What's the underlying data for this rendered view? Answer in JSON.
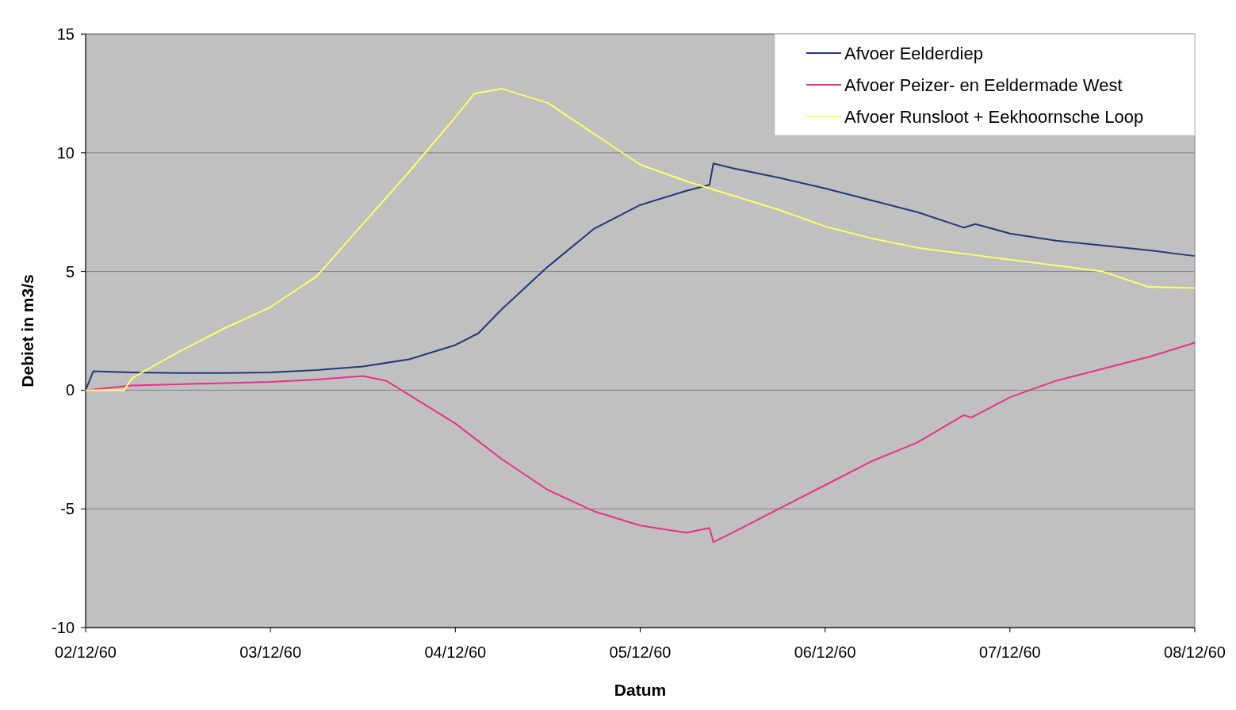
{
  "chart_data": {
    "type": "line",
    "xlabel": "Datum",
    "ylabel": "Debiet in m3/s",
    "ylim": [
      -10,
      15
    ],
    "yticks": [
      -10,
      -5,
      0,
      5,
      10,
      15
    ],
    "xlim": [
      "1960-12-02",
      "1960-12-08"
    ],
    "xticks": [
      {
        "value": "1960-12-02",
        "label": "02/12/60"
      },
      {
        "value": "1960-12-03",
        "label": "03/12/60"
      },
      {
        "value": "1960-12-04",
        "label": "04/12/60"
      },
      {
        "value": "1960-12-05",
        "label": "05/12/60"
      },
      {
        "value": "1960-12-06",
        "label": "06/12/60"
      },
      {
        "value": "1960-12-07",
        "label": "07/12/60"
      },
      {
        "value": "1960-12-08",
        "label": "08/12/60"
      }
    ],
    "grid": "y",
    "legend": "top right",
    "series": [
      {
        "name": "Afvoer Eelderdiep",
        "color": "#1f3a7a",
        "x": [
          "1960-12-02T00:00",
          "1960-12-02T01:00",
          "1960-12-02T06:00",
          "1960-12-02T12:00",
          "1960-12-02T18:00",
          "1960-12-03T00:00",
          "1960-12-03T06:00",
          "1960-12-03T12:00",
          "1960-12-03T18:00",
          "1960-12-04T00:00",
          "1960-12-04T03:00",
          "1960-12-04T06:00",
          "1960-12-04T12:00",
          "1960-12-04T18:00",
          "1960-12-05T00:00",
          "1960-12-05T06:00",
          "1960-12-05T09:00",
          "1960-12-05T09:30",
          "1960-12-05T12:00",
          "1960-12-05T18:00",
          "1960-12-06T00:00",
          "1960-12-06T06:00",
          "1960-12-06T12:00",
          "1960-12-06T18:00",
          "1960-12-06T19:30",
          "1960-12-07T00:00",
          "1960-12-07T06:00",
          "1960-12-07T12:00",
          "1960-12-07T18:00",
          "1960-12-08T00:00"
        ],
        "values": [
          0,
          0.8,
          0.75,
          0.72,
          0.72,
          0.75,
          0.85,
          1.0,
          1.3,
          1.9,
          2.4,
          3.4,
          5.2,
          6.8,
          7.8,
          8.4,
          8.65,
          9.55,
          9.35,
          8.95,
          8.5,
          8.0,
          7.5,
          6.85,
          7.0,
          6.6,
          6.3,
          6.1,
          5.9,
          5.65
        ]
      },
      {
        "name": "Afvoer Peizer- en Eeldermade West",
        "color": "#e8308a",
        "x": [
          "1960-12-02T00:00",
          "1960-12-02T06:00",
          "1960-12-02T12:00",
          "1960-12-02T18:00",
          "1960-12-03T00:00",
          "1960-12-03T06:00",
          "1960-12-03T12:00",
          "1960-12-03T15:00",
          "1960-12-03T18:00",
          "1960-12-04T00:00",
          "1960-12-04T06:00",
          "1960-12-04T12:00",
          "1960-12-04T18:00",
          "1960-12-05T00:00",
          "1960-12-05T06:00",
          "1960-12-05T09:00",
          "1960-12-05T09:30",
          "1960-12-05T12:00",
          "1960-12-05T18:00",
          "1960-12-06T00:00",
          "1960-12-06T06:00",
          "1960-12-06T12:00",
          "1960-12-06T18:00",
          "1960-12-06T19:00",
          "1960-12-07T00:00",
          "1960-12-07T06:00",
          "1960-12-07T12:00",
          "1960-12-07T18:00",
          "1960-12-08T00:00"
        ],
        "values": [
          0,
          0.2,
          0.25,
          0.3,
          0.35,
          0.45,
          0.6,
          0.4,
          -0.2,
          -1.4,
          -2.9,
          -4.2,
          -5.1,
          -5.7,
          -6.0,
          -5.8,
          -6.4,
          -6.0,
          -5.0,
          -4.0,
          -3.0,
          -2.2,
          -1.05,
          -1.15,
          -0.3,
          0.4,
          0.9,
          1.4,
          2.0
        ]
      },
      {
        "name": "Afvoer Runsloot + Eekhoornsche Loop",
        "color": "#ffff66",
        "x": [
          "1960-12-02T00:00",
          "1960-12-02T05:00",
          "1960-12-02T06:00",
          "1960-12-02T12:00",
          "1960-12-02T18:00",
          "1960-12-03T00:00",
          "1960-12-03T06:00",
          "1960-12-03T12:00",
          "1960-12-03T18:00",
          "1960-12-04T00:00",
          "1960-12-04T02:30",
          "1960-12-04T06:00",
          "1960-12-04T12:00",
          "1960-12-04T18:00",
          "1960-12-05T00:00",
          "1960-12-05T06:00",
          "1960-12-05T12:00",
          "1960-12-05T18:00",
          "1960-12-06T00:00",
          "1960-12-06T06:00",
          "1960-12-06T12:00",
          "1960-12-06T18:00",
          "1960-12-07T00:00",
          "1960-12-07T06:00",
          "1960-12-07T12:00",
          "1960-12-07T18:00",
          "1960-12-08T00:00"
        ],
        "values": [
          0,
          0,
          0.5,
          1.6,
          2.6,
          3.5,
          4.8,
          7.0,
          9.2,
          11.5,
          12.5,
          12.7,
          12.1,
          10.8,
          9.5,
          8.8,
          8.2,
          7.6,
          6.9,
          6.4,
          6.0,
          5.75,
          5.5,
          5.25,
          5.0,
          4.35,
          4.3
        ]
      }
    ]
  }
}
